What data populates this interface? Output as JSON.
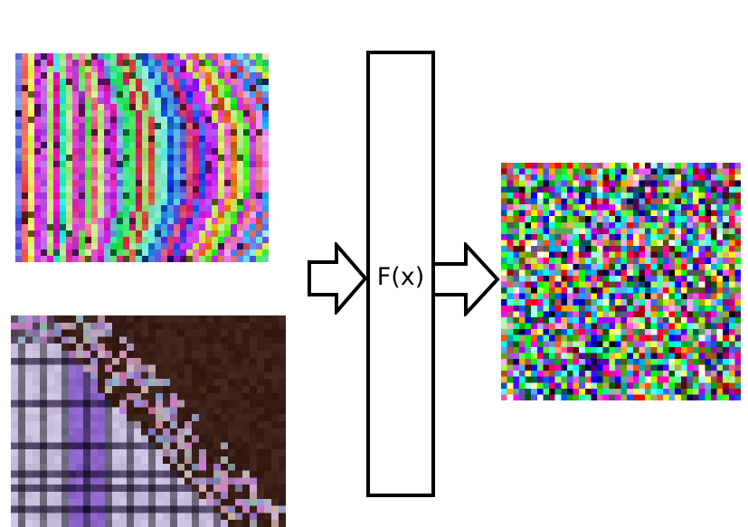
{
  "function_box": {
    "label": "F(x)"
  },
  "images": {
    "input_top": {
      "kind": "pixelated-colorful-stripes"
    },
    "input_bottom": {
      "kind": "pixelated-purple-photo"
    },
    "output": {
      "kind": "random-color-noise"
    }
  },
  "arrows": {
    "input": {
      "style": "outlined-block-arrow",
      "direction": "right"
    },
    "output": {
      "style": "outlined-block-arrow",
      "direction": "right"
    }
  },
  "colors": {
    "stroke": "#000000",
    "fill": "#ffffff",
    "photo_dark": "#3a1f17",
    "photo_light": "#c9bedd",
    "photo_purple": "#8d6bb0"
  }
}
